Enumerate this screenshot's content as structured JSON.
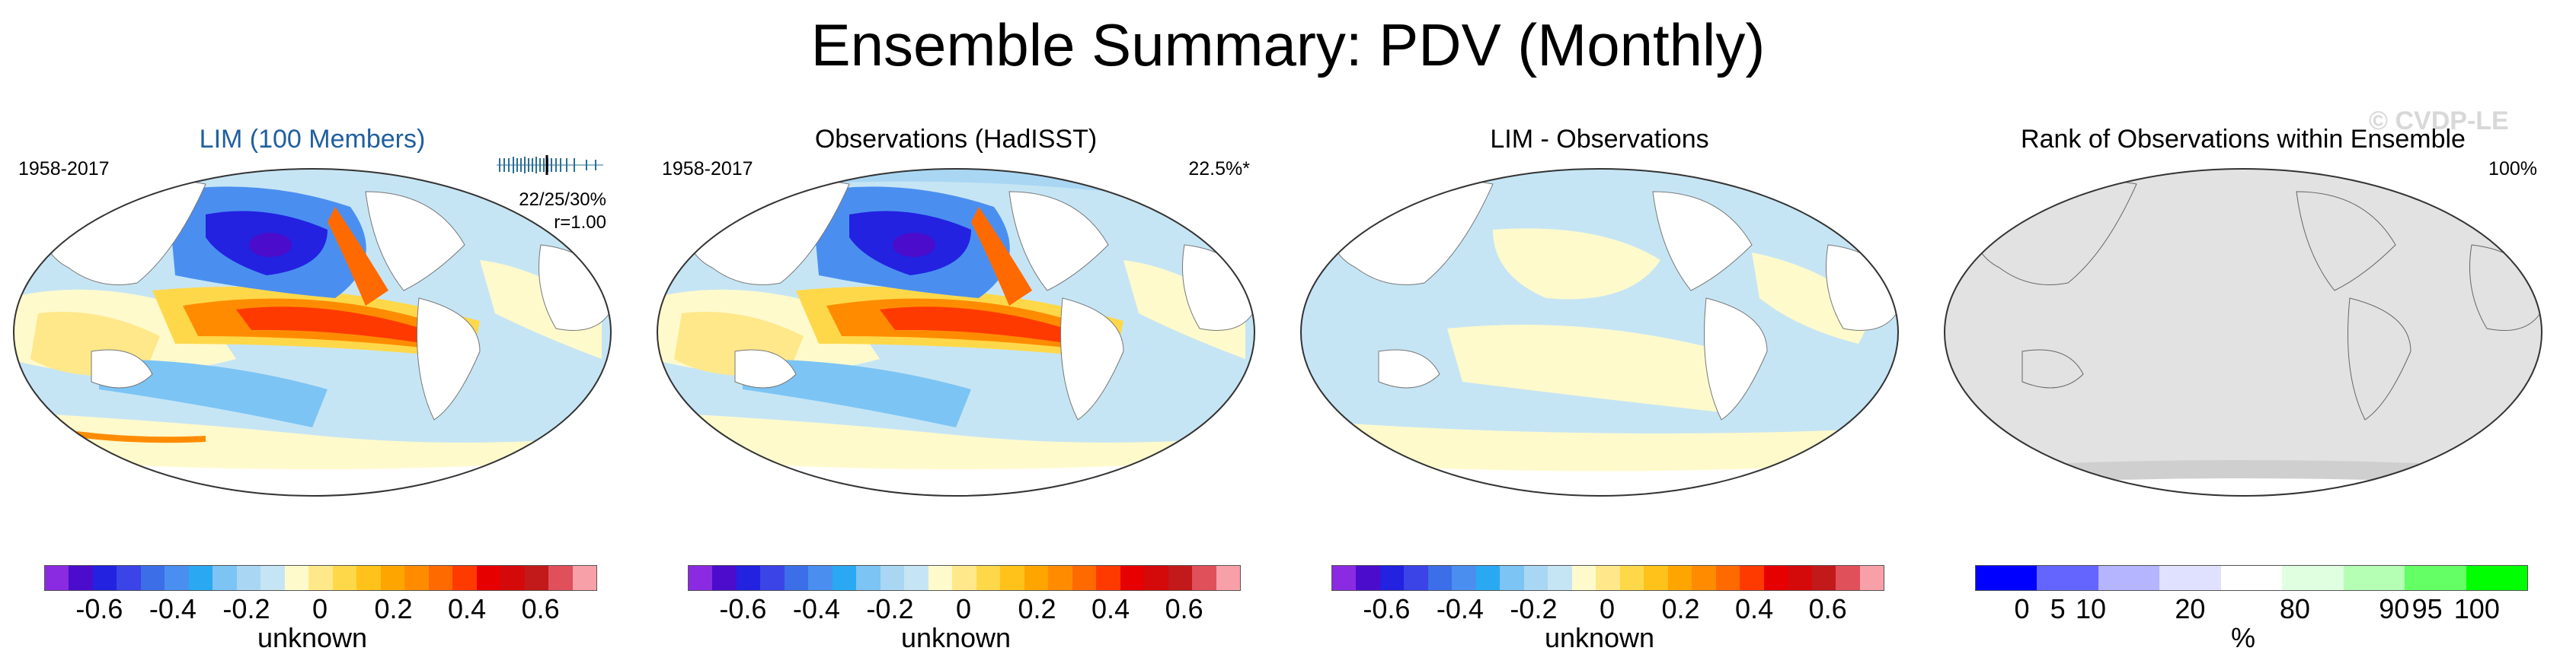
{
  "title": "Ensemble Summary: PDV (Monthly)",
  "watermark": "© CVDP-LE",
  "panels": [
    {
      "title": "LIM (100 Members)",
      "left_text": "1958-2017",
      "right_text": "",
      "stats_line1": "22/25/30%",
      "stats_line2": "r=1.00"
    },
    {
      "title": "Observations (HadISST)",
      "left_text": "1958-2017",
      "right_text": "22.5%*"
    },
    {
      "title": "LIM - Observations",
      "left_text": "",
      "right_text": ""
    },
    {
      "title": "Rank of Observations within Ensemble",
      "left_text": "",
      "right_text": "100%"
    }
  ],
  "colorbar_anomaly": {
    "colors": [
      "#8a2be2",
      "#4b0ccc",
      "#2222e0",
      "#3b44e6",
      "#3c6ee8",
      "#4a8ff0",
      "#2aa8f2",
      "#7cc4f4",
      "#a9d6f3",
      "#c6e5f4",
      "#fffacc",
      "#ffe88a",
      "#ffd84a",
      "#ffc21a",
      "#ffa500",
      "#ff8c00",
      "#ff6a00",
      "#ff3a00",
      "#e60000",
      "#d40a0a",
      "#c21a1a",
      "#e0505a",
      "#f7a0a8"
    ],
    "ticks": [
      "-0.6",
      "-0.4",
      "-0.2",
      "0",
      "0.2",
      "0.4",
      "0.6"
    ],
    "unit": "unknown"
  },
  "colorbar_rank": {
    "colors": [
      "#0000ff",
      "#6464ff",
      "#b4b4ff",
      "#e0e0ff",
      "#ffffff",
      "#e0ffe0",
      "#b4ffb4",
      "#64ff64",
      "#00ff00"
    ],
    "ticks": [
      "0",
      "5",
      "10",
      "20",
      "80",
      "90",
      "95",
      "100"
    ],
    "unit": "%"
  },
  "colors": {
    "land_gray": "#e2e2e2",
    "ocean_light_blue": "#c6e5f4",
    "ocean_light_yellow": "#fffacc"
  }
}
